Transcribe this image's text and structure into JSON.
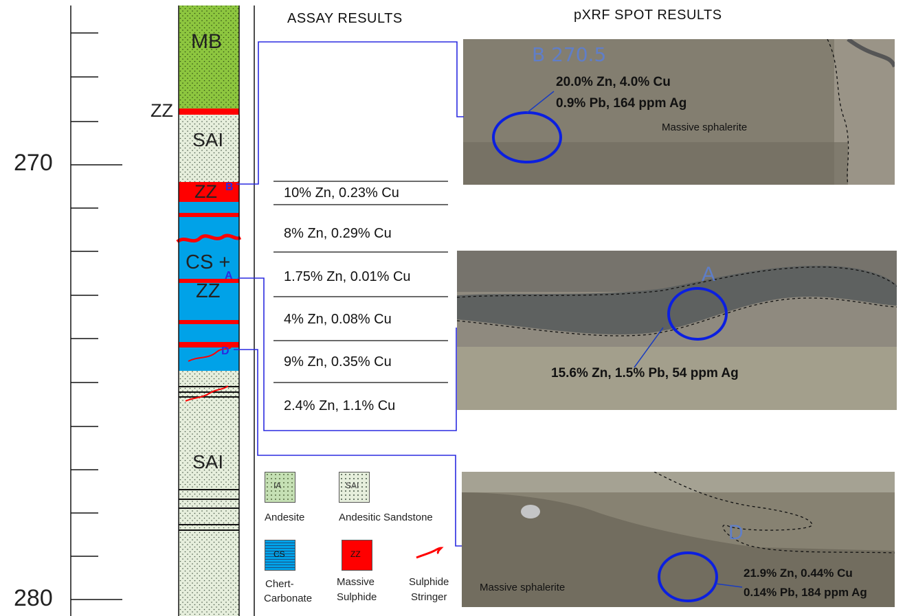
{
  "headers": {
    "assay": "ASSAY RESULTS",
    "pxrf": "pXRF SPOT RESULTS"
  },
  "depth_labels": {
    "d270": "270",
    "d280": "280"
  },
  "units": {
    "mb": "MB",
    "zz_top": "ZZ",
    "sai_upper": "SAI",
    "zz_b": "ZZ",
    "cs_line1": "CS +",
    "cs_line2": "ZZ",
    "sai_lower": "SAI"
  },
  "markers": {
    "b": "B",
    "a": "A",
    "d": "D"
  },
  "assays": [
    "10% Zn, 0.23% Cu",
    "8% Zn, 0.29% Cu",
    "1.75% Zn, 0.01% Cu",
    "4% Zn, 0.08% Cu",
    "9% Zn, 0.35% Cu",
    "2.4% Zn, 1.1% Cu"
  ],
  "photos": {
    "b": {
      "label": "B 270.5",
      "line1": "20.0% Zn, 4.0% Cu",
      "line2": "0.9% Pb, 164 ppm Ag",
      "note": "Massive sphalerite"
    },
    "a": {
      "label": "A",
      "line1": "15.6% Zn, 1.5% Pb, 54 ppm Ag"
    },
    "d": {
      "label": "D",
      "line1": "21.9% Zn, 0.44% Cu",
      "line2": "0.14% Pb, 184 ppm Ag",
      "note": "Massive sphalerite"
    }
  },
  "legend": {
    "ia_code": "IA",
    "ia_name": "Andesite",
    "sai_code": "SAI",
    "sai_name": "Andesitic Sandstone",
    "cs_code": "CS",
    "cs_name_1": "Chert-",
    "cs_name_2": "Carbonate",
    "zz_code": "ZZ",
    "zz_name_1": "Massive",
    "zz_name_2": "Sulphide",
    "stringer_name_1": "Sulphide",
    "stringer_name_2": "Stringer"
  },
  "colors": {
    "mb_green": "#8dc63f",
    "sai_fill": "#e6eedc",
    "cs_blue": "#00a2e8",
    "zz_red": "#ff0000",
    "connector_blue": "#2a2ae0"
  }
}
